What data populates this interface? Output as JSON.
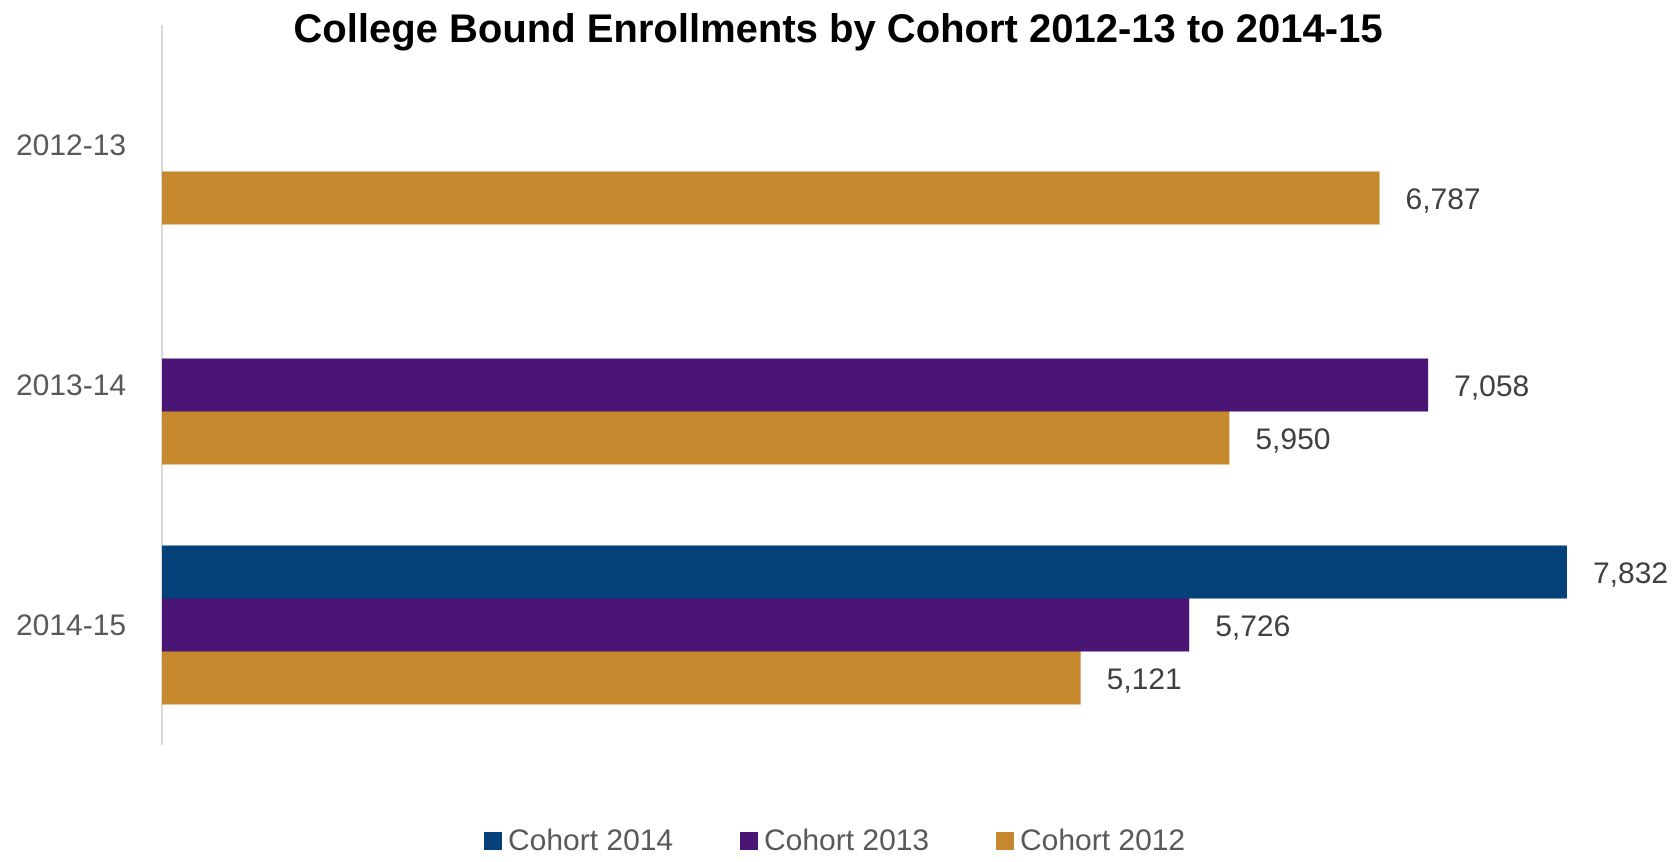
{
  "chart_data": {
    "type": "bar",
    "orientation": "horizontal",
    "title": "College Bound Enrollments by Cohort 2012-13 to 2014-15",
    "xlabel": "",
    "ylabel": "",
    "categories": [
      "2012-13",
      "2013-14",
      "2014-15"
    ],
    "series": [
      {
        "name": "Cohort 2014",
        "color": "#06427a",
        "values": [
          null,
          null,
          7832
        ],
        "labels": [
          "",
          "",
          "7,832"
        ]
      },
      {
        "name": "Cohort 2013",
        "color": "#4a1575",
        "values": [
          null,
          7058,
          5726
        ],
        "labels": [
          "",
          "7,058",
          "5,726"
        ]
      },
      {
        "name": "Cohort 2012",
        "color": "#c6882d",
        "values": [
          6787,
          5950,
          5121
        ],
        "labels": [
          "6,787",
          "5,950",
          "5,121"
        ]
      }
    ],
    "xlim": [
      0,
      7832
    ],
    "grid": false,
    "axis_line_color": "#d9d9d9",
    "legend": {
      "placement": "bottom",
      "order": [
        "Cohort 2014",
        "Cohort 2013",
        "Cohort 2012"
      ]
    }
  }
}
